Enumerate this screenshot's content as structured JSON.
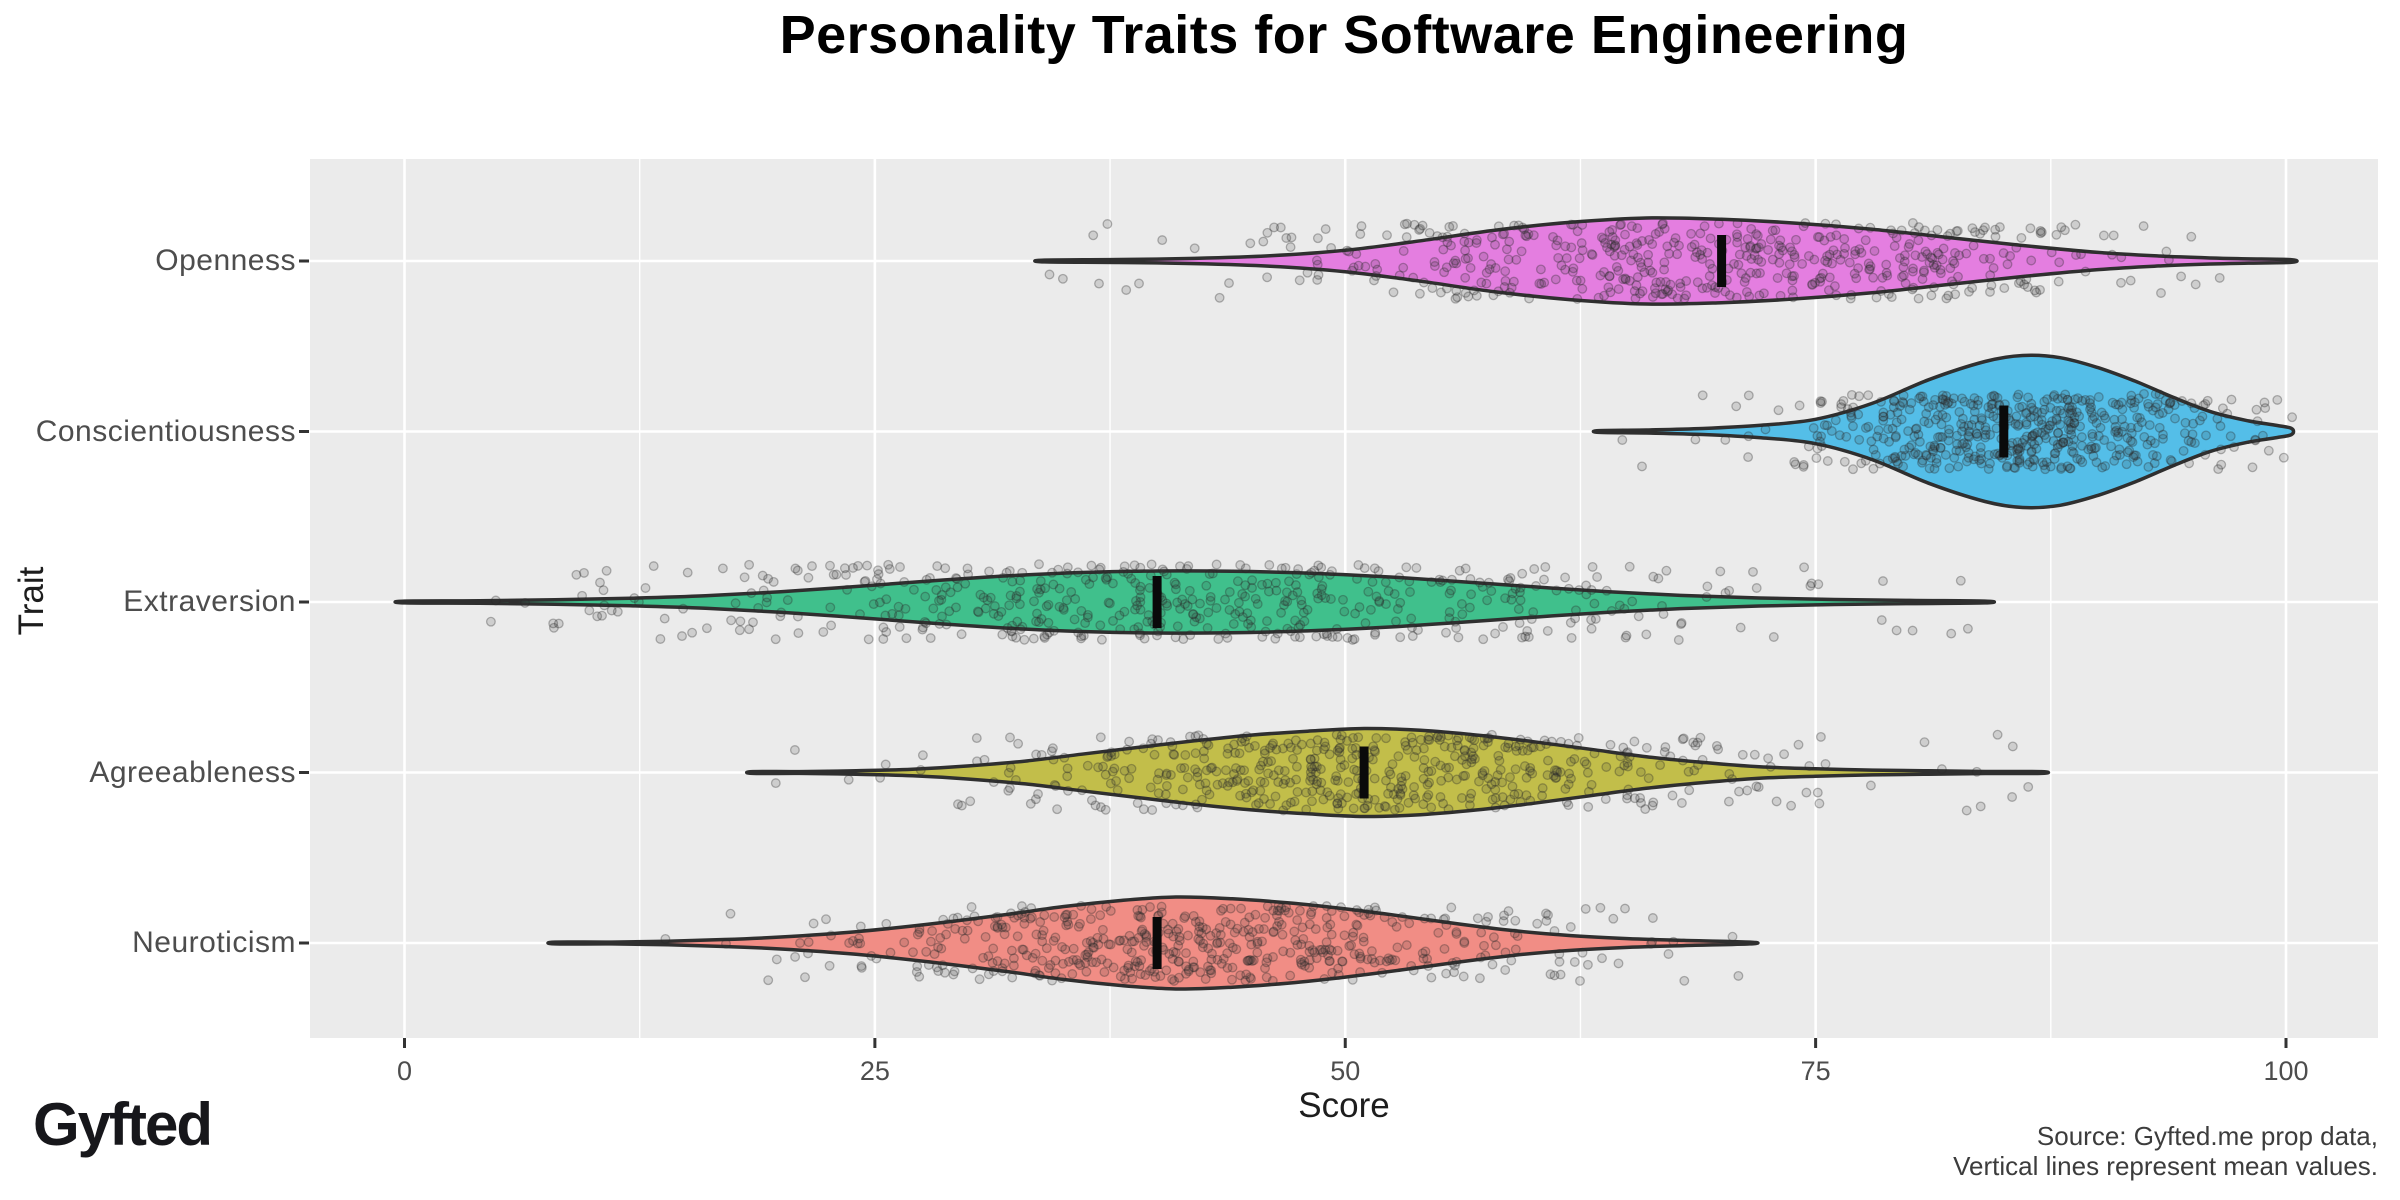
{
  "title": "Personality Traits for Software Engineering",
  "branding": {
    "logo_text": "Gyfted"
  },
  "footnote": {
    "line1": "Source: Gyfted.me prop data,",
    "line2": "Vertical lines represent mean values."
  },
  "chart_data": {
    "type": "violin",
    "orientation": "horizontal",
    "title": "Personality Traits for Software Engineering",
    "x_axis": {
      "label": "Score",
      "range": [
        0,
        100
      ],
      "major_ticks": [
        0,
        25,
        50,
        75,
        100
      ],
      "tick_labels": [
        "0",
        "25",
        "50",
        "75",
        "100"
      ],
      "minor_gridlines": [
        12.5,
        37.5,
        62.5,
        87.5
      ],
      "grid": true
    },
    "y_axis": {
      "label": "Trait",
      "categories": [
        "Openness",
        "Conscientiousness",
        "Extraversion",
        "Agreeableness",
        "Neuroticism"
      ]
    },
    "legend": "none",
    "mean_marker": "vertical black line at mean value",
    "points_per_trait_approx": 520,
    "style": {
      "panel_bg": "#EBEBEB",
      "grid_color": "#FFFFFF",
      "violin_outline": "#2F2F2F",
      "mean_line_color": "#0A0A0A",
      "point_color": "rgba(55,55,55,0.16)",
      "point_stroke": "rgba(40,40,40,0.32)",
      "tick_color": "#333333"
    },
    "series": [
      {
        "name": "Openness",
        "fill": "#E47EE0",
        "mean": 70,
        "range": [
          34,
          100
        ],
        "peak": 66,
        "rel_max_halfwidth": 0.252,
        "density_profile": [
          [
            34,
            0.02
          ],
          [
            38,
            0.035
          ],
          [
            42,
            0.06
          ],
          [
            46,
            0.12
          ],
          [
            50,
            0.25
          ],
          [
            54,
            0.47
          ],
          [
            58,
            0.72
          ],
          [
            62,
            0.9
          ],
          [
            66,
            1.0
          ],
          [
            70,
            0.97
          ],
          [
            74,
            0.88
          ],
          [
            78,
            0.74
          ],
          [
            82,
            0.55
          ],
          [
            86,
            0.36
          ],
          [
            90,
            0.2
          ],
          [
            93,
            0.12
          ],
          [
            96,
            0.07
          ],
          [
            98,
            0.05
          ],
          [
            100.3,
            0.03
          ]
        ]
      },
      {
        "name": "Conscientiousness",
        "fill": "#54BEE8",
        "mean": 85,
        "range": [
          63.5,
          100
        ],
        "peak": 86,
        "rel_max_halfwidth": 0.446,
        "density_profile": [
          [
            63.5,
            0.01
          ],
          [
            66,
            0.02
          ],
          [
            69,
            0.04
          ],
          [
            72,
            0.08
          ],
          [
            75,
            0.16
          ],
          [
            78,
            0.37
          ],
          [
            81,
            0.68
          ],
          [
            84,
            0.92
          ],
          [
            86,
            1.0
          ],
          [
            88,
            0.97
          ],
          [
            90,
            0.84
          ],
          [
            92,
            0.66
          ],
          [
            94,
            0.45
          ],
          [
            96,
            0.26
          ],
          [
            98,
            0.14
          ],
          [
            99.5,
            0.08
          ],
          [
            100.3,
            0.04
          ]
        ]
      },
      {
        "name": "Extraversion",
        "fill": "#40C08C",
        "mean": 40,
        "range": [
          0,
          84
        ],
        "peak": 40,
        "rel_max_halfwidth": 0.182,
        "density_profile": [
          [
            0,
            0.02
          ],
          [
            4,
            0.04
          ],
          [
            8,
            0.07
          ],
          [
            12,
            0.12
          ],
          [
            16,
            0.2
          ],
          [
            20,
            0.33
          ],
          [
            24,
            0.5
          ],
          [
            28,
            0.68
          ],
          [
            32,
            0.84
          ],
          [
            36,
            0.95
          ],
          [
            40,
            1.0
          ],
          [
            44,
            0.99
          ],
          [
            48,
            0.93
          ],
          [
            52,
            0.82
          ],
          [
            56,
            0.66
          ],
          [
            60,
            0.49
          ],
          [
            64,
            0.33
          ],
          [
            68,
            0.21
          ],
          [
            72,
            0.13
          ],
          [
            76,
            0.08
          ],
          [
            80,
            0.05
          ],
          [
            84,
            0.02
          ]
        ]
      },
      {
        "name": "Agreeableness",
        "fill": "#C2BE4A",
        "mean": 51,
        "range": [
          18.5,
          87
        ],
        "peak": 51,
        "rel_max_halfwidth": 0.258,
        "density_profile": [
          [
            18.5,
            0.01
          ],
          [
            21,
            0.02
          ],
          [
            24,
            0.04
          ],
          [
            27,
            0.075
          ],
          [
            30,
            0.15
          ],
          [
            33,
            0.26
          ],
          [
            36,
            0.415
          ],
          [
            39,
            0.57
          ],
          [
            42,
            0.72
          ],
          [
            45,
            0.85
          ],
          [
            48,
            0.94
          ],
          [
            51,
            1.0
          ],
          [
            54,
            0.96
          ],
          [
            57,
            0.85
          ],
          [
            60,
            0.7
          ],
          [
            63,
            0.53
          ],
          [
            66,
            0.36
          ],
          [
            69,
            0.23
          ],
          [
            72,
            0.13
          ],
          [
            75,
            0.085
          ],
          [
            78,
            0.055
          ],
          [
            81,
            0.038
          ],
          [
            84,
            0.023
          ],
          [
            87,
            0.012
          ]
        ]
      },
      {
        "name": "Neuroticism",
        "fill": "#F18D85",
        "mean": 40,
        "range": [
          8,
          71.5
        ],
        "peak": 41,
        "rel_max_halfwidth": 0.27,
        "density_profile": [
          [
            8,
            0.01
          ],
          [
            11,
            0.02
          ],
          [
            14,
            0.04
          ],
          [
            17,
            0.075
          ],
          [
            20,
            0.13
          ],
          [
            24,
            0.245
          ],
          [
            28,
            0.415
          ],
          [
            32,
            0.62
          ],
          [
            35,
            0.79
          ],
          [
            38,
            0.92
          ],
          [
            41,
            1.0
          ],
          [
            44,
            0.96
          ],
          [
            47,
            0.87
          ],
          [
            50,
            0.74
          ],
          [
            53,
            0.585
          ],
          [
            56,
            0.415
          ],
          [
            59,
            0.265
          ],
          [
            62,
            0.16
          ],
          [
            65,
            0.095
          ],
          [
            68,
            0.057
          ],
          [
            71.5,
            0.02
          ]
        ]
      }
    ]
  }
}
